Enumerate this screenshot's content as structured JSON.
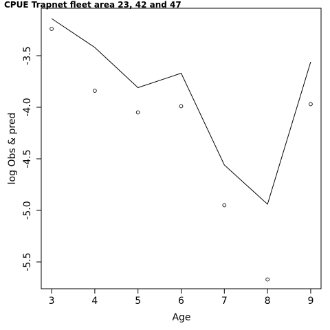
{
  "chart_data": {
    "type": "line",
    "title": "CPUE Trapnet fleet area 23, 42 and 47",
    "xlabel": "Age",
    "ylabel": "log Obs & pred",
    "xlim": [
      2.76,
      9.24
    ],
    "ylim": [
      -5.76,
      -3.04
    ],
    "x_ticks": [
      3,
      4,
      5,
      6,
      7,
      8,
      9
    ],
    "y_ticks": [
      -3.5,
      -4.0,
      -4.5,
      -5.0,
      -5.5
    ],
    "y_tick_labels": [
      "-3.5",
      "-4.0",
      "-4.5",
      "-5.0",
      "-5.5"
    ],
    "grid": false,
    "series": [
      {
        "style": "line",
        "x": [
          3,
          4,
          5,
          6,
          7,
          8,
          9
        ],
        "y": [
          -3.14,
          -3.42,
          -3.81,
          -3.67,
          -4.56,
          -4.94,
          -3.56
        ]
      },
      {
        "style": "points",
        "x": [
          3,
          4,
          5,
          6,
          7,
          8,
          9
        ],
        "y": [
          -3.24,
          -3.84,
          -4.05,
          -3.99,
          -4.95,
          -5.67,
          -3.97
        ]
      }
    ]
  }
}
